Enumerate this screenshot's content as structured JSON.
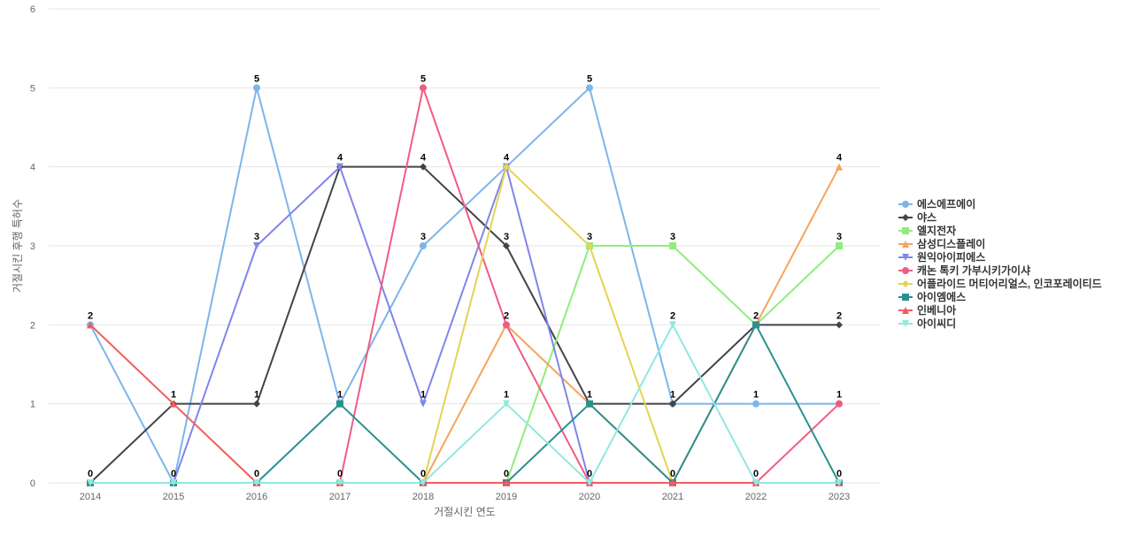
{
  "chart_data": {
    "type": "line",
    "title": "",
    "xlabel": "거절시킨 연도",
    "ylabel": "거절시킨 후행 특허수",
    "categories": [
      "2014",
      "2015",
      "2016",
      "2017",
      "2018",
      "2019",
      "2020",
      "2021",
      "2022",
      "2023"
    ],
    "ylim": [
      0,
      6
    ],
    "yticks": [
      "0",
      "1",
      "2",
      "3",
      "4",
      "5",
      "6"
    ],
    "grid": true,
    "legend_position": "right",
    "series": [
      {
        "name": "에스에프에이",
        "color": "#7cb5ec",
        "marker": "circle",
        "values": [
          2,
          0,
          5,
          1,
          3,
          4,
          5,
          1,
          1,
          1
        ]
      },
      {
        "name": "야스",
        "color": "#434348",
        "marker": "diamond",
        "values": [
          0,
          1,
          1,
          4,
          4,
          3,
          1,
          1,
          2,
          2
        ]
      },
      {
        "name": "엘지전자",
        "color": "#90ed7d",
        "marker": "square",
        "values": [
          0,
          0,
          0,
          0,
          0,
          0,
          3,
          3,
          2,
          3
        ]
      },
      {
        "name": "삼성디스플레이",
        "color": "#f7a35c",
        "marker": "triangle",
        "values": [
          0,
          0,
          0,
          0,
          0,
          2,
          1,
          0,
          2,
          4
        ]
      },
      {
        "name": "원익아이피에스",
        "color": "#8085e9",
        "marker": "triangle-down",
        "values": [
          0,
          0,
          3,
          4,
          1,
          4,
          0,
          0,
          0,
          0
        ]
      },
      {
        "name": "캐논 톡키 가부시키가이샤",
        "color": "#f15c80",
        "marker": "circle",
        "values": [
          0,
          0,
          0,
          0,
          5,
          2,
          0,
          0,
          0,
          1
        ]
      },
      {
        "name": "어플라이드 머티어리얼스, 인코포레이티드",
        "color": "#e4d354",
        "marker": "diamond",
        "values": [
          0,
          0,
          0,
          0,
          0,
          4,
          3,
          0,
          0,
          0
        ]
      },
      {
        "name": "아이엠에스",
        "color": "#2b908f",
        "marker": "square",
        "values": [
          0,
          0,
          0,
          1,
          0,
          0,
          1,
          0,
          2,
          0
        ]
      },
      {
        "name": "인베니아",
        "color": "#f45b5b",
        "marker": "triangle",
        "values": [
          2,
          1,
          0,
          0,
          0,
          0,
          0,
          0,
          0,
          0
        ]
      },
      {
        "name": "아이씨디",
        "color": "#91e8e1",
        "marker": "triangle-down",
        "values": [
          0,
          0,
          0,
          0,
          0,
          1,
          0,
          2,
          0,
          0
        ]
      }
    ],
    "data_labels": [
      {
        "category": "2014",
        "value": 2,
        "text": "2"
      },
      {
        "category": "2014",
        "value": 0,
        "text": "0"
      },
      {
        "category": "2015",
        "value": 1,
        "text": "1"
      },
      {
        "category": "2015",
        "value": 0,
        "text": "0"
      },
      {
        "category": "2016",
        "value": 5,
        "text": "5"
      },
      {
        "category": "2016",
        "value": 3,
        "text": "3"
      },
      {
        "category": "2016",
        "value": 1,
        "text": "1"
      },
      {
        "category": "2016",
        "value": 0,
        "text": "0"
      },
      {
        "category": "2017",
        "value": 4,
        "text": "4"
      },
      {
        "category": "2017",
        "value": 1,
        "text": "1"
      },
      {
        "category": "2017",
        "value": 0,
        "text": "0"
      },
      {
        "category": "2018",
        "value": 5,
        "text": "5"
      },
      {
        "category": "2018",
        "value": 4,
        "text": "4"
      },
      {
        "category": "2018",
        "value": 3,
        "text": "3"
      },
      {
        "category": "2018",
        "value": 1,
        "text": "1"
      },
      {
        "category": "2018",
        "value": 0,
        "text": "0"
      },
      {
        "category": "2019",
        "value": 4,
        "text": "4"
      },
      {
        "category": "2019",
        "value": 3,
        "text": "3"
      },
      {
        "category": "2019",
        "value": 2,
        "text": "2"
      },
      {
        "category": "2019",
        "value": 1,
        "text": "1"
      },
      {
        "category": "2019",
        "value": 0,
        "text": "0"
      },
      {
        "category": "2020",
        "value": 5,
        "text": "5"
      },
      {
        "category": "2020",
        "value": 3,
        "text": "3"
      },
      {
        "category": "2020",
        "value": 1,
        "text": "1"
      },
      {
        "category": "2020",
        "value": 0,
        "text": "0"
      },
      {
        "category": "2021",
        "value": 3,
        "text": "3"
      },
      {
        "category": "2021",
        "value": 2,
        "text": "2"
      },
      {
        "category": "2021",
        "value": 1,
        "text": "1"
      },
      {
        "category": "2021",
        "value": 0,
        "text": "0"
      },
      {
        "category": "2022",
        "value": 2,
        "text": "2"
      },
      {
        "category": "2022",
        "value": 1,
        "text": "1"
      },
      {
        "category": "2022",
        "value": 0,
        "text": "0"
      },
      {
        "category": "2023",
        "value": 4,
        "text": "4"
      },
      {
        "category": "2023",
        "value": 3,
        "text": "3"
      },
      {
        "category": "2023",
        "value": 2,
        "text": "2"
      },
      {
        "category": "2023",
        "value": 1,
        "text": "1"
      },
      {
        "category": "2023",
        "value": 0,
        "text": "0"
      }
    ]
  }
}
